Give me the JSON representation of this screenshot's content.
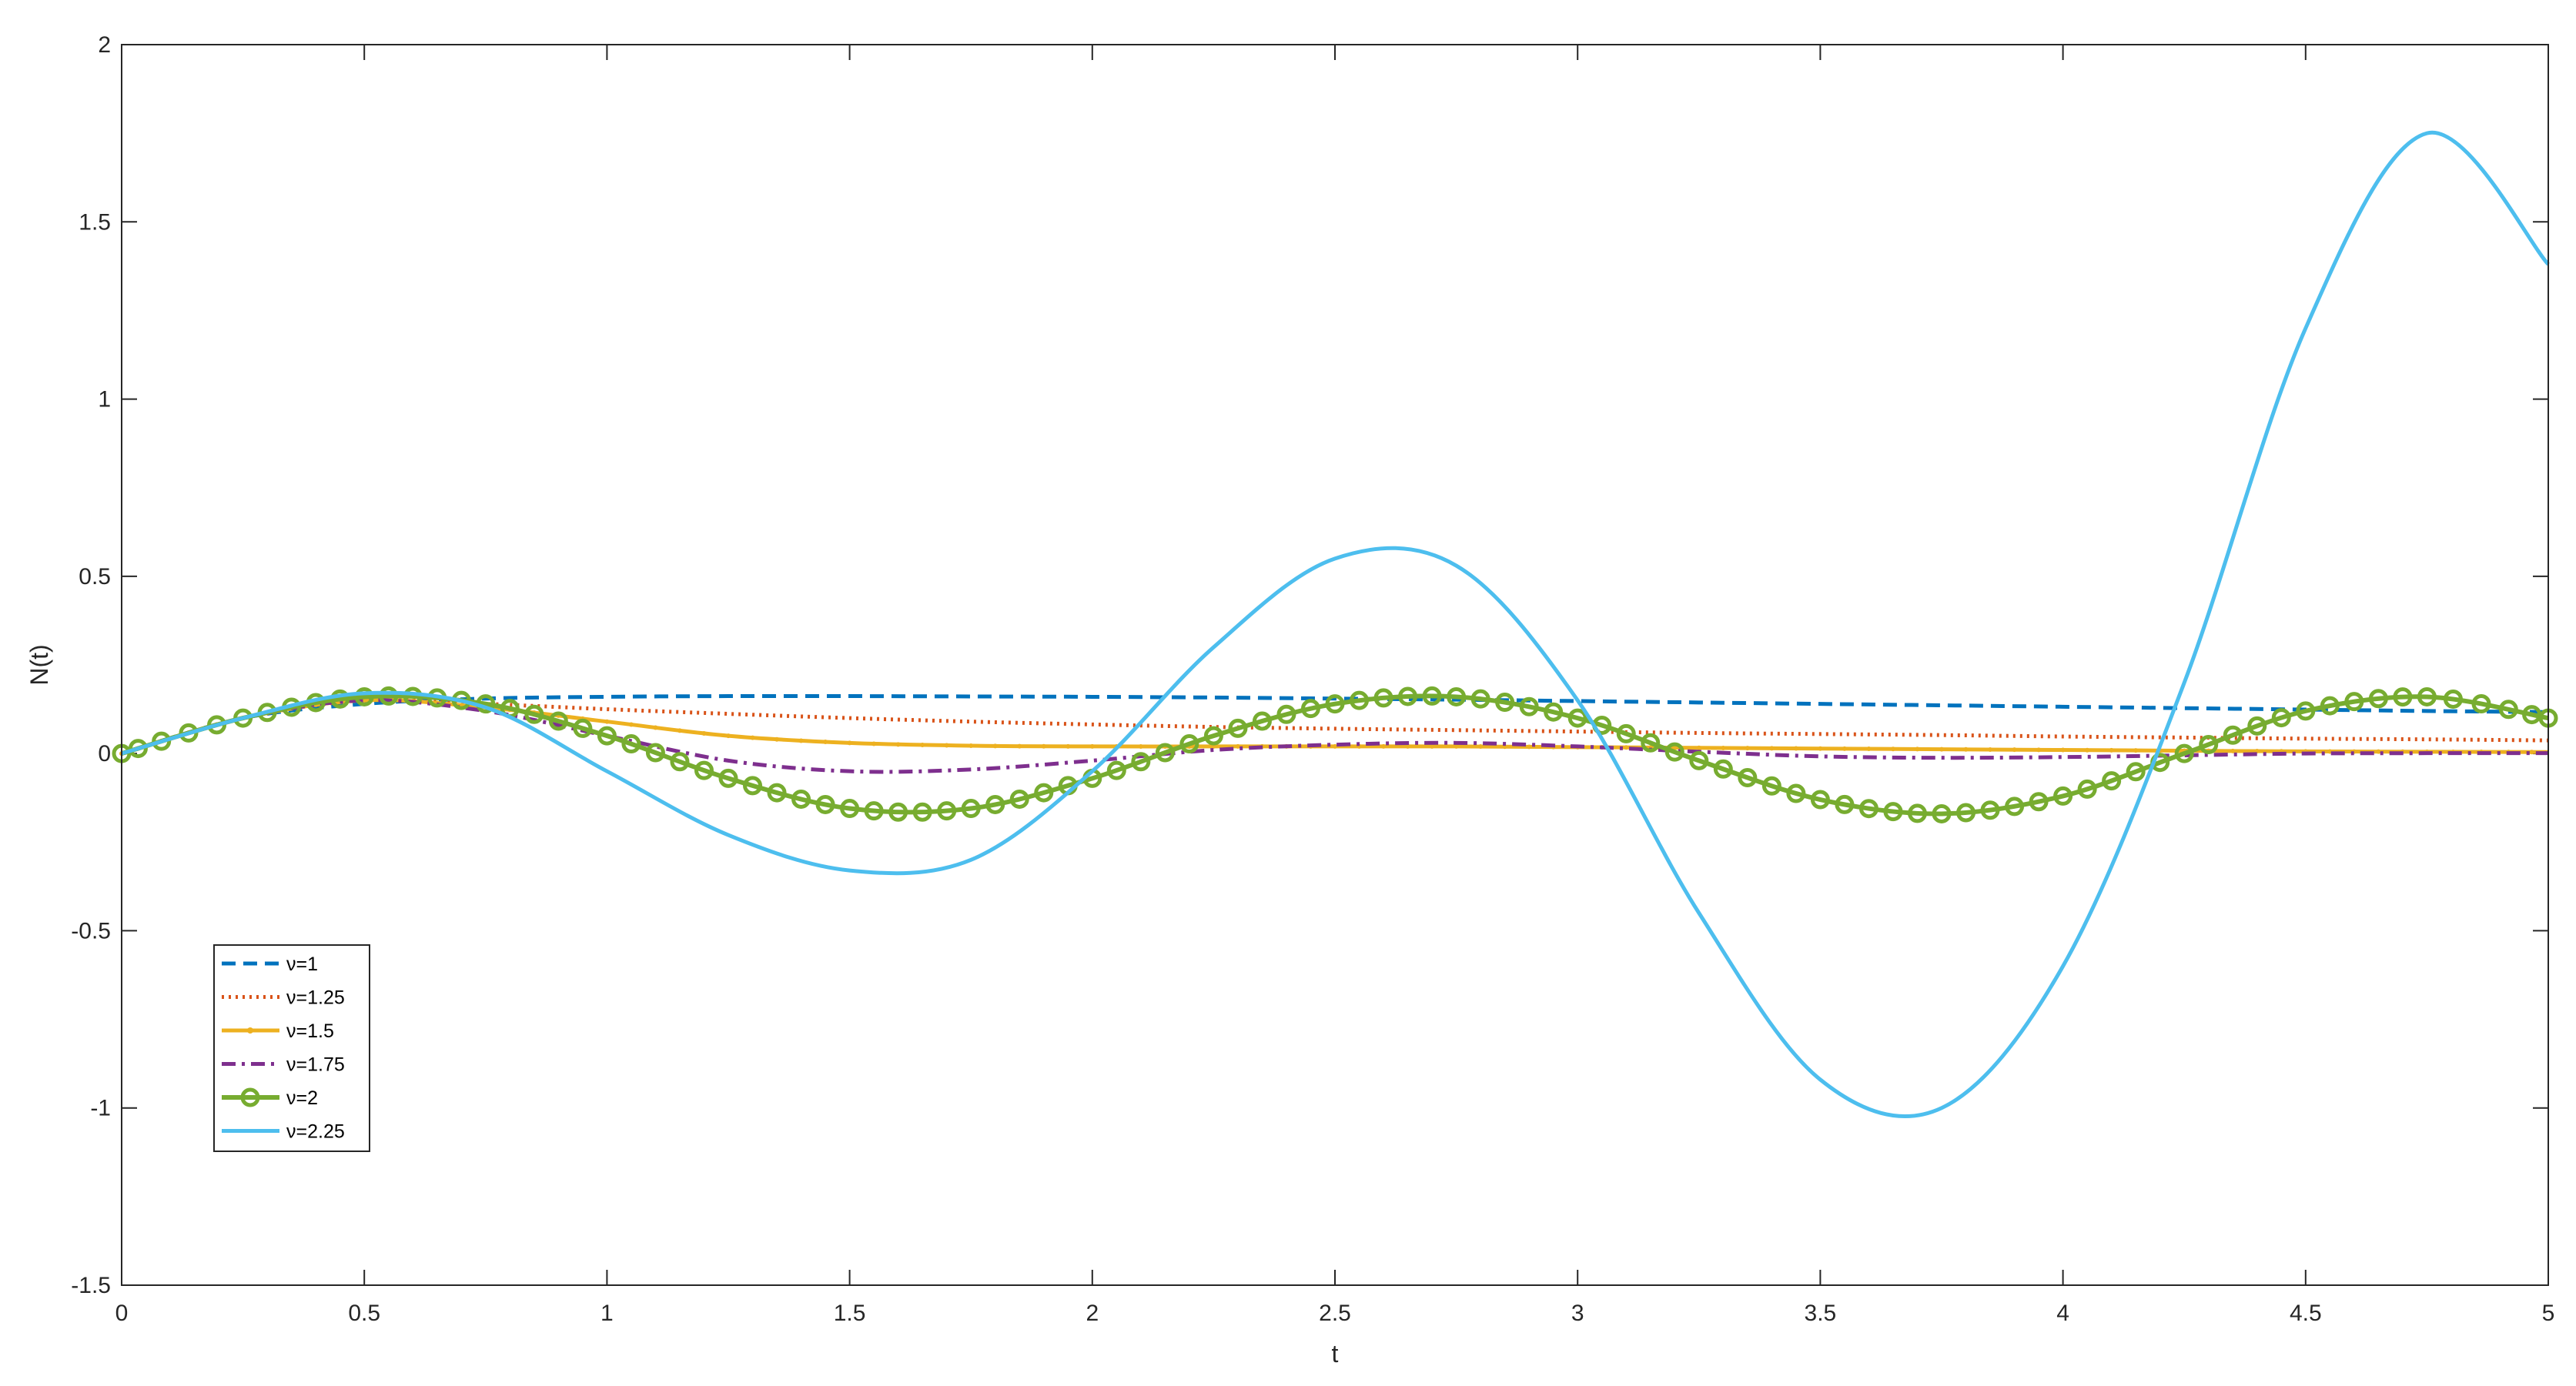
{
  "chart_data": {
    "type": "line",
    "title": "",
    "xlabel": "t",
    "ylabel": "N(t)",
    "xlim": [
      0,
      5
    ],
    "ylim": [
      -1.5,
      2
    ],
    "x_ticks": [
      "0",
      "0.5",
      "1",
      "1.5",
      "2",
      "2.5",
      "3",
      "3.5",
      "4",
      "4.5",
      "5"
    ],
    "y_ticks": [
      "-1.5",
      "-1",
      "-0.5",
      "0",
      "0.5",
      "1",
      "1.5",
      "2"
    ],
    "grid": false,
    "box": true,
    "legend_position": "lower-left",
    "series": [
      {
        "name": "ν=1",
        "color": "#0072BD",
        "style": "dashed",
        "marker": "none",
        "x": [
          0,
          0.25,
          0.5,
          0.75,
          1,
          1.25,
          1.5,
          1.75,
          2,
          2.25,
          2.5,
          2.75,
          3,
          3.25,
          3.5,
          3.75,
          4,
          4.25,
          4.5,
          4.75,
          5
        ],
        "y": [
          0,
          0.1,
          0.14,
          0.155,
          0.16,
          0.162,
          0.162,
          0.161,
          0.16,
          0.158,
          0.155,
          0.152,
          0.148,
          0.144,
          0.14,
          0.136,
          0.132,
          0.128,
          0.124,
          0.12,
          0.117
        ]
      },
      {
        "name": "ν=1.25",
        "color": "#D95319",
        "style": "dotted",
        "marker": "none",
        "x": [
          0,
          0.25,
          0.5,
          0.75,
          1,
          1.25,
          1.5,
          1.75,
          2,
          2.25,
          2.5,
          2.75,
          3,
          3.25,
          3.5,
          3.75,
          4,
          4.25,
          4.5,
          4.75,
          5
        ],
        "y": [
          0,
          0.1,
          0.15,
          0.14,
          0.125,
          0.112,
          0.1,
          0.09,
          0.082,
          0.075,
          0.07,
          0.066,
          0.062,
          0.058,
          0.055,
          0.052,
          0.048,
          0.045,
          0.042,
          0.04,
          0.037
        ]
      },
      {
        "name": "ν=1.5",
        "color": "#EDB120",
        "style": "solid-dot",
        "marker": "point",
        "x": [
          0,
          0.25,
          0.5,
          0.75,
          1,
          1.25,
          1.5,
          1.75,
          2,
          2.25,
          2.5,
          2.75,
          3,
          3.25,
          3.5,
          3.75,
          4,
          4.25,
          4.5,
          4.75,
          5
        ],
        "y": [
          0,
          0.1,
          0.15,
          0.13,
          0.09,
          0.05,
          0.03,
          0.022,
          0.02,
          0.02,
          0.02,
          0.02,
          0.018,
          0.016,
          0.014,
          0.012,
          0.01,
          0.008,
          0.006,
          0.005,
          0.004
        ]
      },
      {
        "name": "ν=1.75",
        "color": "#7E2F8E",
        "style": "dashdot",
        "marker": "none",
        "x": [
          0,
          0.25,
          0.5,
          0.75,
          1,
          1.25,
          1.5,
          1.75,
          2,
          2.25,
          2.5,
          2.75,
          3,
          3.25,
          3.5,
          3.75,
          4,
          4.25,
          4.5,
          4.75,
          5
        ],
        "y": [
          0,
          0.1,
          0.15,
          0.12,
          0.05,
          -0.02,
          -0.05,
          -0.045,
          -0.02,
          0.01,
          0.025,
          0.03,
          0.02,
          0.005,
          -0.008,
          -0.012,
          -0.01,
          -0.005,
          0,
          0.001,
          0.001
        ]
      },
      {
        "name": "ν=2",
        "color": "#77AC30",
        "style": "solid",
        "marker": "circle",
        "x": [
          0,
          0.25,
          0.5,
          0.75,
          1,
          1.25,
          1.5,
          1.75,
          2,
          2.25,
          2.5,
          2.75,
          3,
          3.25,
          3.5,
          3.75,
          4,
          4.25,
          4.5,
          4.75,
          5
        ],
        "y": [
          0,
          0.1,
          0.16,
          0.14,
          0.05,
          -0.07,
          -0.155,
          -0.155,
          -0.07,
          0.05,
          0.14,
          0.16,
          0.1,
          -0.02,
          -0.13,
          -0.17,
          -0.12,
          0,
          0.12,
          0.16,
          0.1
        ]
      },
      {
        "name": "ν=2.25",
        "color": "#4DBEEE",
        "style": "solid",
        "marker": "none",
        "x": [
          0,
          0.25,
          0.5,
          0.75,
          1,
          1.25,
          1.5,
          1.75,
          2,
          2.25,
          2.5,
          2.75,
          3,
          3.25,
          3.5,
          3.75,
          4,
          4.25,
          4.5,
          4.75,
          5
        ],
        "y": [
          0,
          0.1,
          0.17,
          0.13,
          -0.05,
          -0.23,
          -0.33,
          -0.3,
          -0.05,
          0.3,
          0.55,
          0.53,
          0.15,
          -0.45,
          -0.92,
          -1.0,
          -0.6,
          0.2,
          1.2,
          1.75,
          1.38
        ]
      }
    ]
  }
}
